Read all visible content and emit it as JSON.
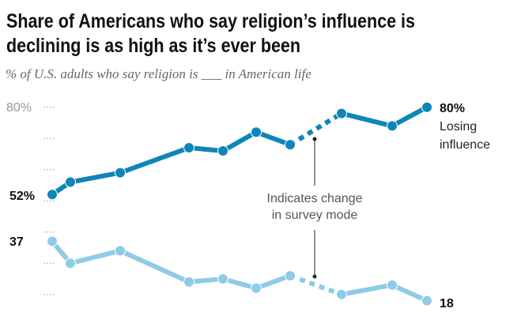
{
  "title_line1": "Share of Americans who say religion’s influence is",
  "title_line2": "declining is as high as it’s ever been",
  "subtitle": "% of U.S. adults who say religion is ___ in American life",
  "chart_data": {
    "type": "line",
    "title": "Share of Americans who say religion’s influence is declining is as high as it’s ever been",
    "subtitle": "% of U.S. adults who say religion is ___ in American life",
    "ylim": [
      20,
      80
    ],
    "y_gridlines": [
      80,
      70,
      60,
      50,
      40,
      30,
      20
    ],
    "y_tick_label": "80%",
    "grid": "dotted",
    "series": [
      {
        "name": "Losing influence",
        "color": "#0e86b8",
        "values": [
          52,
          56,
          59,
          67,
          66,
          72,
          68,
          78,
          74,
          80
        ],
        "start_label": "52%",
        "end_label": "80%"
      },
      {
        "color": "#8ecbe6",
        "values": [
          37,
          30,
          34,
          24,
          25,
          22,
          26,
          20,
          23,
          18
        ],
        "start_label": "37",
        "end_label": "18"
      }
    ],
    "dashed_segment_after_point": 7,
    "end_label_series": [
      "Losing",
      "influence"
    ],
    "annotation": [
      "Indicates change",
      "in survey mode"
    ]
  }
}
